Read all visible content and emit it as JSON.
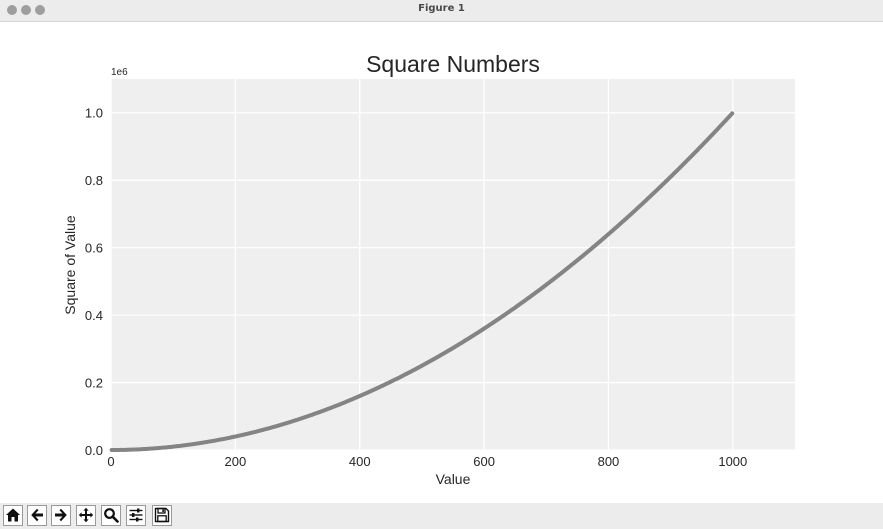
{
  "window": {
    "title": "Figure 1"
  },
  "toolbar": {
    "buttons": [
      {
        "name": "home",
        "icon": "home-icon"
      },
      {
        "name": "back",
        "icon": "arrow-left-icon"
      },
      {
        "name": "forward",
        "icon": "arrow-right-icon"
      },
      {
        "name": "pan",
        "icon": "move-icon"
      },
      {
        "name": "zoom",
        "icon": "magnifier-icon"
      },
      {
        "name": "configure-subplots",
        "icon": "sliders-icon"
      },
      {
        "name": "save",
        "icon": "floppy-disk-icon"
      }
    ]
  },
  "chart_data": {
    "type": "scatter",
    "title": "Square Numbers",
    "xlabel": "Value",
    "ylabel": "Square of Value",
    "y_offset_text": "1e6",
    "xlim": [
      0,
      1100
    ],
    "ylim": [
      0,
      1100000
    ],
    "x_ticks": [
      0,
      200,
      400,
      600,
      800,
      1000
    ],
    "x_tick_labels": [
      "0",
      "200",
      "400",
      "600",
      "800",
      "1000"
    ],
    "y_ticks": [
      0,
      200000,
      400000,
      600000,
      800000,
      1000000
    ],
    "y_tick_labels": [
      "0.0",
      "0.2",
      "0.4",
      "0.6",
      "0.8",
      "1.0"
    ],
    "grid": true,
    "series": [
      {
        "x_start": 1,
        "x_end": 1000,
        "rule": "y = x^2",
        "color": "#848484"
      }
    ],
    "background": "#efefef",
    "grid_color": "#ffffff"
  }
}
